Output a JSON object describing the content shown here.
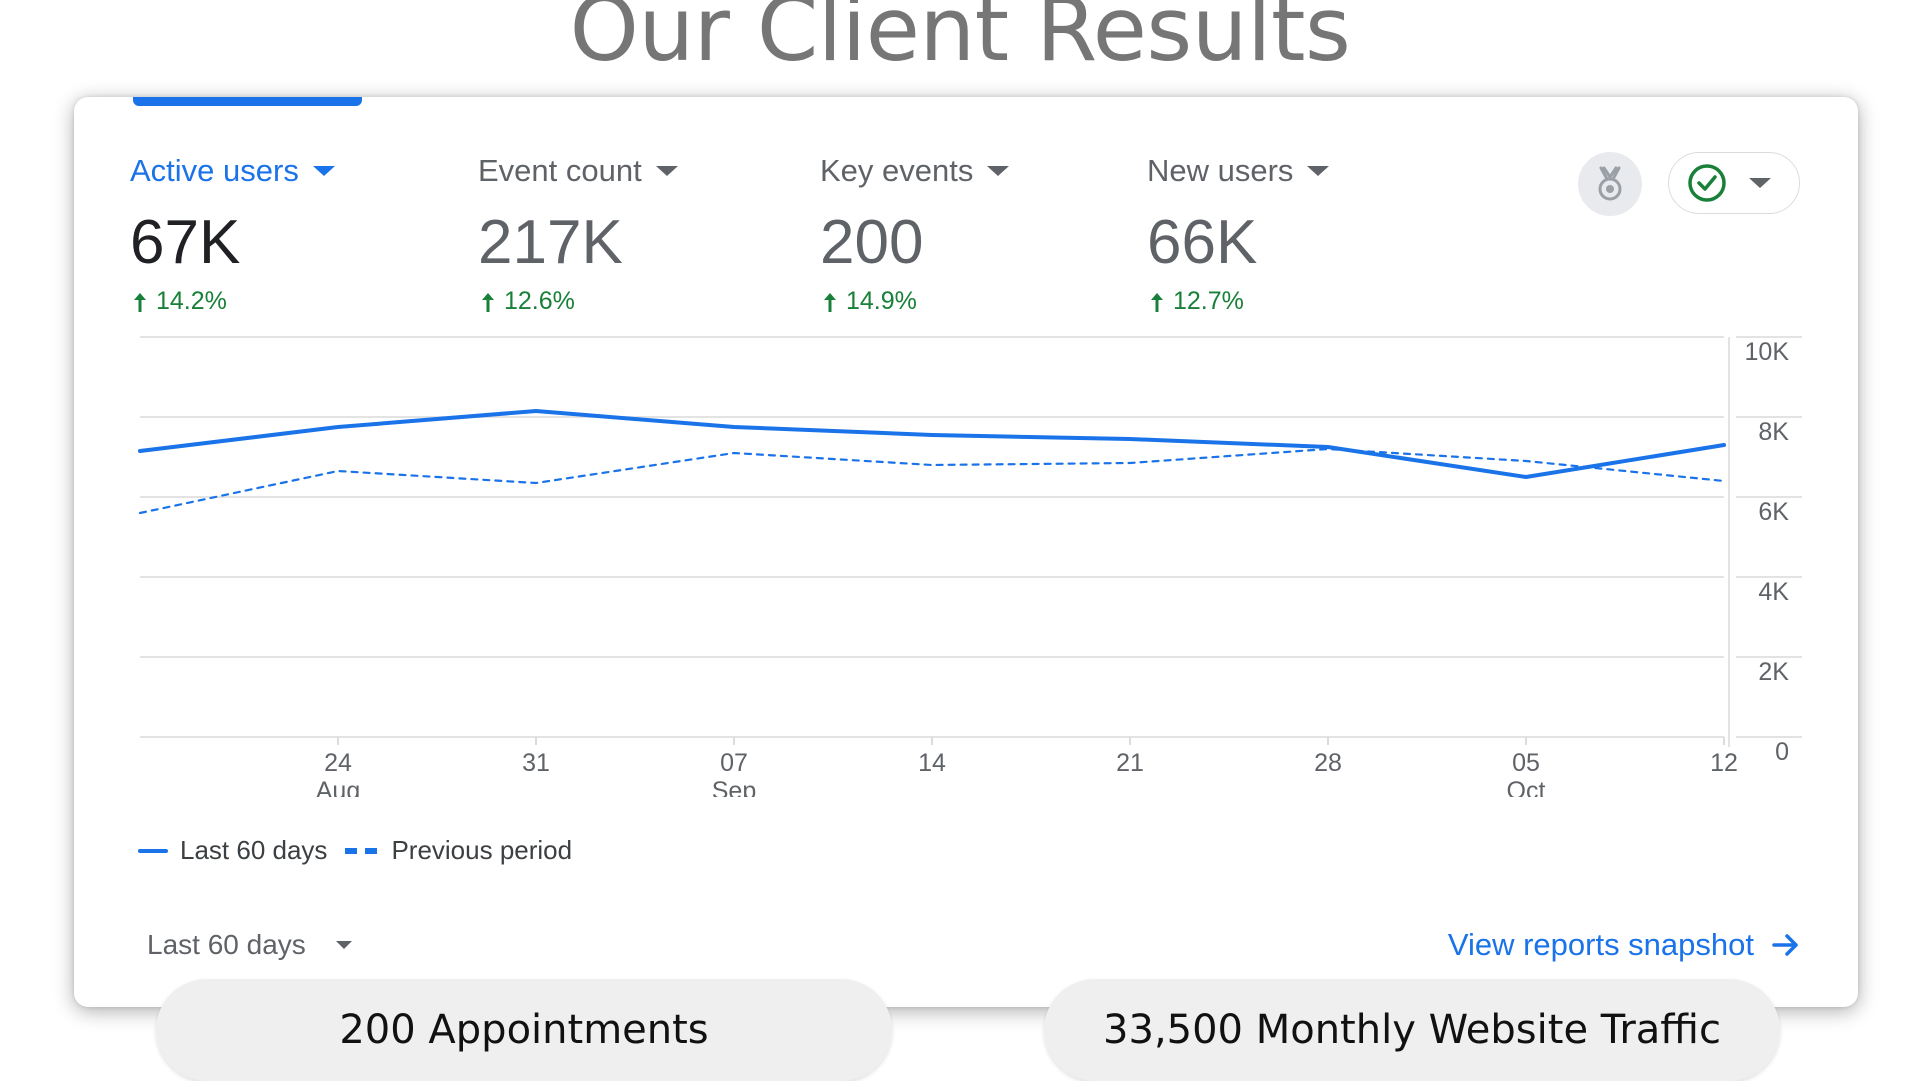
{
  "title": "Our Client Results",
  "metrics": [
    {
      "label": "Active users",
      "value": "67K",
      "change": "14.2%"
    },
    {
      "label": "Event count",
      "value": "217K",
      "change": "12.6%"
    },
    {
      "label": "Key events",
      "value": "200",
      "change": "14.9%"
    },
    {
      "label": "New users",
      "value": "66K",
      "change": "12.7%"
    }
  ],
  "colors": {
    "accent": "#1a73e8",
    "positive": "#188038",
    "muted": "#5f6368"
  },
  "icons": {
    "award": "award-icon",
    "status": "check-circle-icon",
    "link": "arrow-right-icon"
  },
  "legend": {
    "current": "Last 60 days",
    "previous": "Previous period"
  },
  "date_range": {
    "label": "Last 60 days"
  },
  "snapshot_link": "View reports snapshot",
  "pills": {
    "left": "200 Appointments",
    "right": "33,500 Monthly Website  Traffic"
  },
  "chart_data": {
    "type": "line",
    "x_ticks": [
      {
        "day": "24",
        "month": "Aug"
      },
      {
        "day": "31",
        "month": ""
      },
      {
        "day": "07",
        "month": "Sep"
      },
      {
        "day": "14",
        "month": ""
      },
      {
        "day": "21",
        "month": ""
      },
      {
        "day": "28",
        "month": ""
      },
      {
        "day": "05",
        "month": "Oct"
      },
      {
        "day": "12",
        "month": ""
      }
    ],
    "y_ticks": [
      "0",
      "2K",
      "4K",
      "6K",
      "8K",
      "10K"
    ],
    "ylim": [
      0,
      10000
    ],
    "x": [
      "2024-08-17",
      "2024-08-24",
      "2024-08-31",
      "2024-09-07",
      "2024-09-14",
      "2024-09-21",
      "2024-09-28",
      "2024-10-05",
      "2024-10-12"
    ],
    "series": [
      {
        "name": "Last 60 days",
        "style": "solid",
        "values": [
          7150,
          7750,
          8150,
          7750,
          7550,
          7450,
          7250,
          6500,
          7300
        ]
      },
      {
        "name": "Previous period",
        "style": "dashed",
        "values": [
          5600,
          6650,
          6350,
          7100,
          6800,
          6850,
          7200,
          6900,
          6400
        ]
      }
    ],
    "grid": true,
    "legend_position": "bottom-left"
  }
}
